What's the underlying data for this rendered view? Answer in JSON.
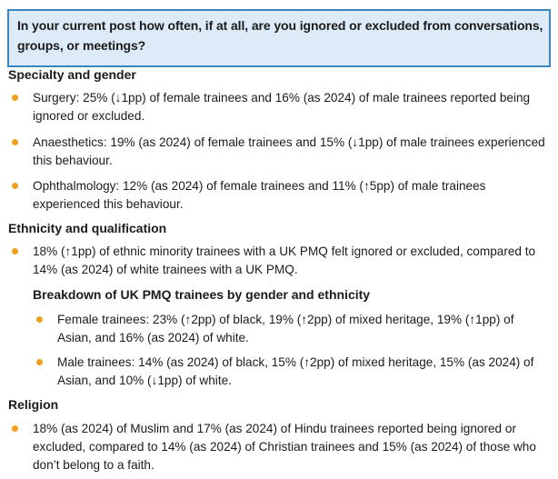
{
  "question": "In your current post how often, if at all, are you ignored or excluded from conversations, groups, or meetings?",
  "sections": [
    {
      "heading": "Specialty and gender",
      "bullets": [
        "Surgery: 25% (↓1pp) of female trainees and 16% (as 2024) of male trainees reported being ignored or excluded.",
        "Anaesthetics: 19% (as 2024) of female trainees and 15% (↓1pp) of male trainees experienced this behaviour.",
        "Ophthalmology: 12% (as 2024) of female trainees and 11% (↑5pp) of male trainees experienced this behaviour."
      ]
    },
    {
      "heading": "Ethnicity and qualification",
      "bullets": [
        "18% (↑1pp) of ethnic minority trainees with a UK PMQ felt ignored or excluded, compared to 14% (as 2024) of white trainees with a UK PMQ."
      ],
      "subheading": "Breakdown of UK PMQ trainees by gender and ethnicity",
      "sub_bullets": [
        "Female trainees: 23% (↑2pp) of black, 19% (↑2pp) of mixed heritage, 19% (↑1pp) of Asian, and 16% (as 2024) of white.",
        "Male trainees: 14% (as 2024) of black, 15% (↑2pp) of mixed heritage, 15% (as 2024) of Asian, and 10% (↓1pp) of white."
      ]
    },
    {
      "heading": "Religion",
      "bullets": [
        "18% (as 2024) of Muslim and 17% (as 2024) of Hindu trainees reported being ignored or excluded, compared to 14% (as 2024) of Christian trainees and 15% (as 2024) of those who don’t belong to a faith."
      ]
    }
  ],
  "colors": {
    "box_bg": "#dcebf7",
    "box_border": "#3a87c0",
    "bullet": "#f0a01e"
  }
}
